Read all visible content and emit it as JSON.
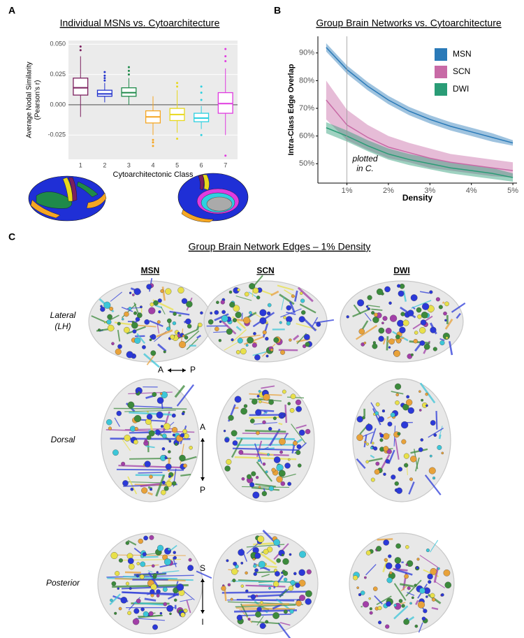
{
  "chart_data": [
    {
      "type": "box",
      "panel_label": "A",
      "title": "Individual MSNs vs. Cytoarchitecture",
      "ylabel": [
        "Average Nodal Similarity",
        "(Pearson's r)"
      ],
      "xlabel": "Cytoarchitectonic Class",
      "categories": [
        "1",
        "2",
        "3",
        "4",
        "5",
        "6",
        "7"
      ],
      "boxes": [
        {
          "color": "#7b1f5e",
          "whisker_low": -0.01,
          "q1": 0.008,
          "median": 0.014,
          "q3": 0.022,
          "whisker_high": 0.04,
          "outliers": [
            0.045,
            0.048
          ]
        },
        {
          "color": "#2233cc",
          "whisker_low": 0.002,
          "q1": 0.007,
          "median": 0.009,
          "q3": 0.012,
          "whisker_high": 0.018,
          "outliers": [
            0.02,
            0.022,
            0.024,
            0.027
          ]
        },
        {
          "color": "#1f8a4a",
          "whisker_low": 0.0,
          "q1": 0.007,
          "median": 0.01,
          "q3": 0.014,
          "whisker_high": 0.022,
          "outliers": [
            0.025,
            0.028,
            0.031
          ]
        },
        {
          "color": "#f5a623",
          "whisker_low": -0.025,
          "q1": -0.015,
          "median": -0.01,
          "q3": -0.005,
          "whisker_high": 0.007,
          "outliers": [
            -0.029,
            -0.031,
            -0.034
          ]
        },
        {
          "color": "#e8d81c",
          "whisker_low": -0.023,
          "q1": -0.013,
          "median": -0.008,
          "q3": -0.003,
          "whisker_high": 0.012,
          "outliers": [
            0.015,
            0.018,
            -0.028
          ]
        },
        {
          "color": "#2ed0e0",
          "whisker_low": -0.02,
          "q1": -0.014,
          "median": -0.011,
          "q3": -0.007,
          "whisker_high": -0.001,
          "outliers": [
            0.004,
            0.01,
            0.015,
            -0.025
          ]
        },
        {
          "color": "#e03be0",
          "whisker_low": -0.025,
          "q1": -0.007,
          "median": 0.001,
          "q3": 0.01,
          "whisker_high": 0.03,
          "outliers": [
            0.036,
            0.04,
            0.046,
            -0.042
          ]
        }
      ],
      "ylim": [
        -0.045,
        0.053
      ],
      "yticks": [
        {
          "value": -0.025,
          "label": "-0.025"
        },
        {
          "value": 0,
          "label": "0.000"
        },
        {
          "value": 0.025,
          "label": "0.025"
        },
        {
          "value": 0.05,
          "label": "0.050"
        }
      ],
      "hline": 0,
      "grid": true
    },
    {
      "type": "line",
      "panel_label": "B",
      "title": "Group Brain Networks vs. Cytoarchitecture",
      "ylabel": "Intra-Class Edge Overlap",
      "xlabel": "Density",
      "x": [
        0.5,
        1,
        1.5,
        2,
        2.5,
        3,
        3.5,
        4,
        4.5,
        5
      ],
      "series": [
        {
          "name": "MSN",
          "color": "#2a7ab8",
          "values": [
            92,
            84,
            78,
            73,
            69,
            66,
            63.5,
            61.5,
            59.5,
            57.5
          ],
          "lower": [
            90.5,
            82.5,
            76.5,
            71.5,
            67.5,
            64.5,
            62,
            60,
            58,
            56.5
          ],
          "upper": [
            93.5,
            85.5,
            79.5,
            74.5,
            70.5,
            67.5,
            65,
            63,
            61,
            58.5
          ]
        },
        {
          "name": "SCN",
          "color": "#c86aa6",
          "values": [
            73,
            64,
            59.5,
            56,
            54,
            52,
            50.5,
            49.5,
            48.5,
            47.5
          ],
          "lower": [
            66,
            58.5,
            55,
            52,
            50.5,
            48.5,
            47.5,
            46.5,
            45.5,
            45
          ],
          "upper": [
            80,
            69.5,
            64,
            60,
            57.5,
            55.5,
            53.5,
            52.5,
            51.5,
            50.5
          ]
        },
        {
          "name": "DWI",
          "color": "#2a9c76",
          "values": [
            63,
            60,
            56.5,
            53.5,
            51.5,
            50,
            48.5,
            47.5,
            46.5,
            45
          ],
          "lower": [
            61,
            58,
            54.5,
            51.5,
            49.5,
            48,
            46.5,
            45.5,
            44.5,
            43.5
          ],
          "upper": [
            65,
            62,
            58.5,
            55.5,
            53.5,
            52,
            50.5,
            49.5,
            48.5,
            46.5
          ]
        }
      ],
      "xlim": [
        0.3,
        5.1
      ],
      "ylim": [
        43,
        96
      ],
      "xticks": [
        {
          "value": 1,
          "label": "1%"
        },
        {
          "value": 2,
          "label": "2%"
        },
        {
          "value": 3,
          "label": "3%"
        },
        {
          "value": 4,
          "label": "4%"
        },
        {
          "value": 5,
          "label": "5%"
        }
      ],
      "yticks": [
        {
          "value": 50,
          "label": "50%"
        },
        {
          "value": 60,
          "label": "60%"
        },
        {
          "value": 70,
          "label": "70%"
        },
        {
          "value": 80,
          "label": "80%"
        },
        {
          "value": 90,
          "label": "90%"
        }
      ],
      "vline": 1,
      "annotation": [
        "plotted",
        "in C."
      ],
      "legend": "upper right"
    }
  ],
  "panel_c": {
    "label": "C",
    "title": "Group Brain Network Edges – 1% Density",
    "columns": [
      "MSN",
      "SCN",
      "DWI"
    ],
    "rows": [
      {
        "label": [
          "Lateral",
          "(LH)"
        ]
      },
      {
        "label": [
          "Dorsal"
        ]
      },
      {
        "label": [
          "Posterior"
        ]
      }
    ],
    "arrows": [
      [
        "A",
        "P"
      ],
      [
        "A",
        "P"
      ],
      [
        "S",
        "I"
      ]
    ]
  }
}
